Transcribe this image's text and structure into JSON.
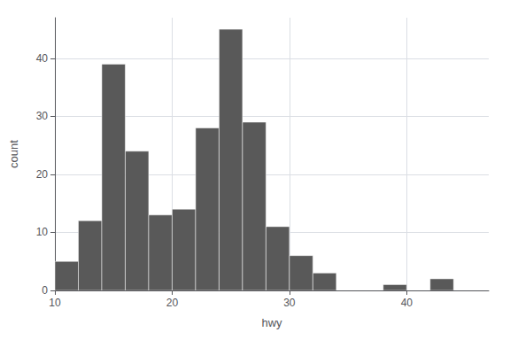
{
  "chart_data": {
    "type": "histogram",
    "xlabel": "hwy",
    "ylabel": "count",
    "bins": [
      10,
      12,
      14,
      16,
      18,
      20,
      22,
      24,
      26,
      28,
      30,
      32,
      34,
      36,
      38,
      40,
      42,
      44,
      46
    ],
    "values": [
      5,
      12,
      39,
      24,
      13,
      14,
      28,
      45,
      29,
      11,
      6,
      3,
      0,
      0,
      1,
      0,
      2,
      0
    ],
    "color": "#595959",
    "xlim": [
      10,
      47
    ],
    "ylim": [
      0,
      47
    ],
    "xticks": [
      10,
      20,
      30,
      40
    ],
    "yticks": [
      0,
      10,
      20,
      30,
      40
    ],
    "grid": true
  }
}
